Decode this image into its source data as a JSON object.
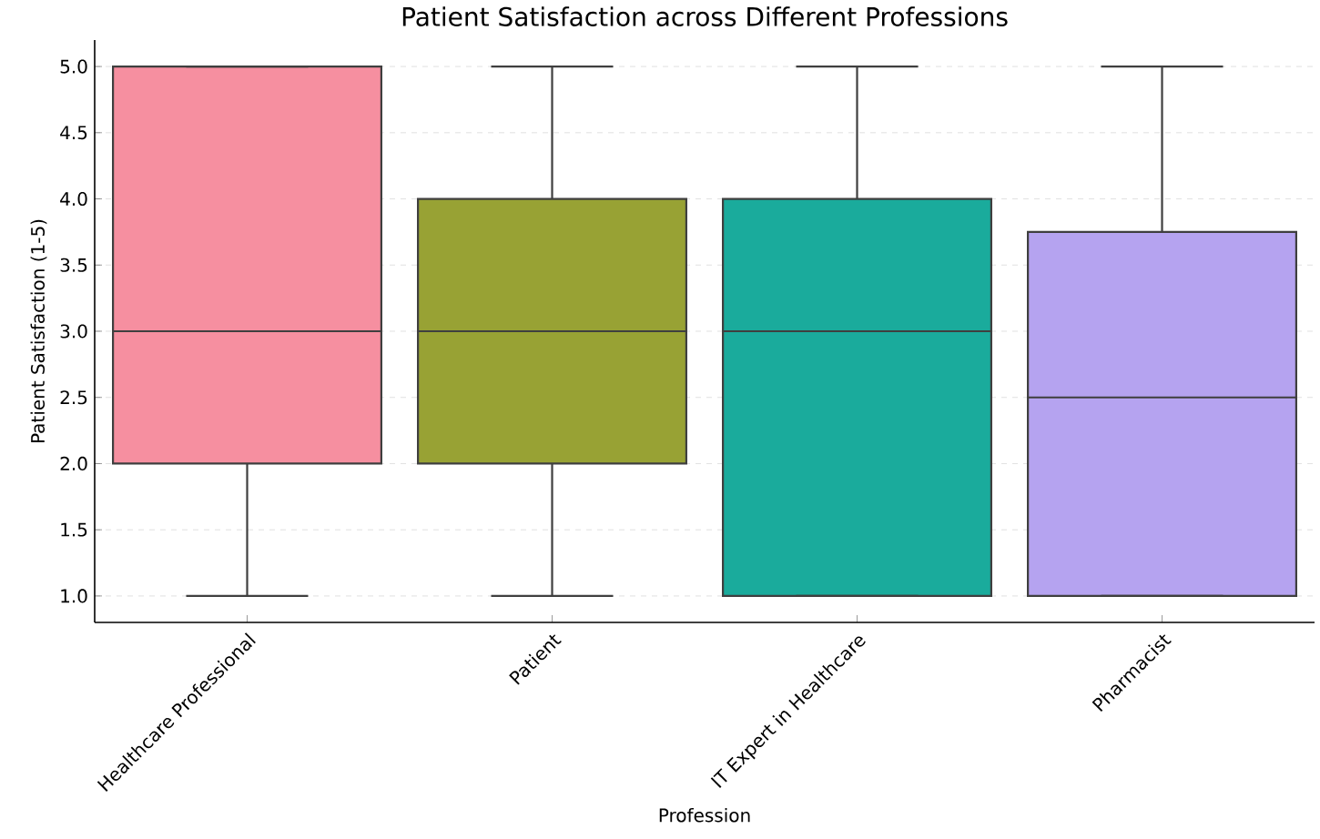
{
  "chart_data": {
    "type": "box",
    "title": "Patient Satisfaction across Different Professions",
    "xlabel": "Profession",
    "ylabel": "Patient Satisfaction (1-5)",
    "categories": [
      "Healthcare Professional",
      "Patient",
      "IT Expert in Healthcare",
      "Pharmacist"
    ],
    "colors": [
      "#f68fa0",
      "#98a234",
      "#1aab9c",
      "#b5a3f0"
    ],
    "boxes": [
      {
        "low": 1,
        "q1": 2,
        "median": 3,
        "q3": 5,
        "high": 5
      },
      {
        "low": 1,
        "q1": 2,
        "median": 3,
        "q3": 4,
        "high": 5
      },
      {
        "low": 1,
        "q1": 1,
        "median": 3,
        "q3": 4,
        "high": 5
      },
      {
        "low": 1,
        "q1": 1,
        "median": 2.5,
        "q3": 3.75,
        "high": 5
      }
    ],
    "ylim": [
      0.8,
      5.2
    ],
    "yticks": [
      {
        "value": 1,
        "label": "1.0"
      },
      {
        "value": 1.5,
        "label": "1.5"
      },
      {
        "value": 2,
        "label": "2.0"
      },
      {
        "value": 2.5,
        "label": "2.5"
      },
      {
        "value": 3,
        "label": "3.0"
      },
      {
        "value": 3.5,
        "label": "3.5"
      },
      {
        "value": 4,
        "label": "4.0"
      },
      {
        "value": 4.5,
        "label": "4.5"
      },
      {
        "value": 5,
        "label": "5.0"
      }
    ],
    "grid": "y"
  }
}
